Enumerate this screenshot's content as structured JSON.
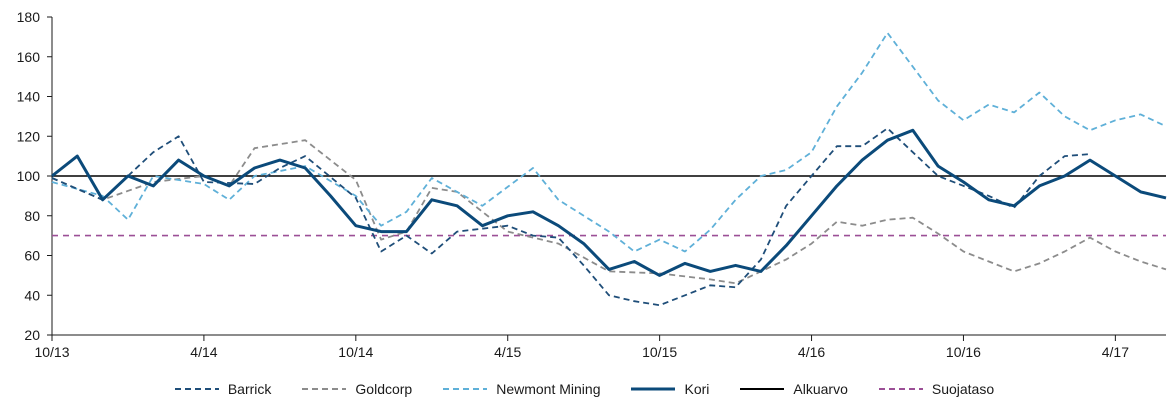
{
  "chart_data": {
    "type": "line",
    "title": "",
    "xlabel": "",
    "ylabel": "",
    "ylim": [
      20,
      180
    ],
    "yticks": [
      "20",
      "40",
      "60",
      "80",
      "100",
      "120",
      "140",
      "160",
      "180"
    ],
    "xlim": [
      "10/13",
      "6/17"
    ],
    "xticks": [
      "10/13",
      "4/14",
      "10/14",
      "4/15",
      "10/15",
      "4/16",
      "10/16",
      "4/17"
    ],
    "grid": false,
    "legend_position": "bottom",
    "series": [
      {
        "name": "Barrick",
        "color": "#1f4e79",
        "style": "dashed",
        "x": [
          "10/13",
          "12/13",
          "2/14",
          "3/14",
          "4/14",
          "6/14",
          "7/14",
          "8/14",
          "10/14",
          "11/14",
          "12/14",
          "1/15",
          "2/15",
          "4/15",
          "5/15",
          "6/15",
          "7/15",
          "8/15",
          "9/15",
          "10/15",
          "11/15",
          "12/15",
          "1/16",
          "2/16",
          "3/16",
          "4/16",
          "5/16",
          "6/16",
          "7/16",
          "8/16",
          "9/16",
          "10/16",
          "11/16",
          "12/16",
          "1/17",
          "2/17",
          "3/17"
        ],
        "values": [
          99,
          88,
          112,
          120,
          97,
          96,
          104,
          110,
          89,
          62,
          70,
          61,
          72,
          75,
          70,
          69,
          55,
          40,
          37,
          35,
          40,
          45,
          44,
          58,
          85,
          100,
          115,
          115,
          124,
          112,
          100,
          95,
          90,
          84,
          100,
          110,
          111
        ]
      },
      {
        "name": "Goldcorp",
        "color": "#8c8c8c",
        "style": "dashed",
        "x": [
          "10/13",
          "12/13",
          "2/14",
          "4/14",
          "5/14",
          "6/14",
          "8/14",
          "10/14",
          "11/14",
          "12/14",
          "1/15",
          "2/15",
          "4/15",
          "6/15",
          "8/15",
          "10/15",
          "12/15",
          "1/16",
          "3/16",
          "4/16",
          "5/16",
          "6/16",
          "7/16",
          "8/16",
          "9/16",
          "10/16",
          "11/16",
          "12/16",
          "1/17",
          "2/17",
          "3/17",
          "4/17",
          "5/17",
          "6/17"
        ],
        "values": [
          99,
          88,
          97,
          100,
          95,
          114,
          118,
          98,
          68,
          72,
          94,
          92,
          72,
          66,
          52,
          51,
          48,
          46,
          58,
          66,
          77,
          75,
          78,
          79,
          71,
          62,
          57,
          52,
          56,
          62,
          69,
          62,
          57,
          53
        ]
      },
      {
        "name": "Newmont Mining",
        "color": "#5fb0d8",
        "style": "dashed",
        "x": [
          "10/13",
          "12/13",
          "1/14",
          "2/14",
          "4/14",
          "5/14",
          "6/14",
          "8/14",
          "10/14",
          "11/14",
          "12/14",
          "1/15",
          "3/15",
          "5/15",
          "6/15",
          "8/15",
          "9/15",
          "10/15",
          "11/15",
          "12/15",
          "1/16",
          "2/16",
          "3/16",
          "4/16",
          "5/16",
          "6/16",
          "7/16",
          "8/16",
          "9/16",
          "10/16",
          "11/16",
          "12/16",
          "1/17",
          "2/17",
          "3/17",
          "4/17",
          "5/17",
          "6/17"
        ],
        "values": [
          97,
          90,
          78,
          100,
          96,
          88,
          100,
          105,
          90,
          75,
          82,
          99,
          85,
          104,
          88,
          72,
          62,
          68,
          62,
          73,
          88,
          100,
          103,
          112,
          135,
          152,
          172,
          155,
          138,
          128,
          136,
          132,
          142,
          130,
          123,
          128,
          131,
          125
        ]
      },
      {
        "name": "Kori",
        "color": "#0b4a7a",
        "style": "solid",
        "emphasis": true,
        "x": [
          "10/13",
          "11/13",
          "12/13",
          "1/14",
          "2/14",
          "3/14",
          "4/14",
          "5/14",
          "6/14",
          "7/14",
          "8/14",
          "9/14",
          "10/14",
          "11/14",
          "12/14",
          "1/15",
          "2/15",
          "3/15",
          "4/15",
          "5/15",
          "6/15",
          "7/15",
          "8/15",
          "9/15",
          "10/15",
          "11/15",
          "12/15",
          "1/16",
          "2/16",
          "3/16",
          "4/16",
          "5/16",
          "6/16",
          "7/16",
          "8/16",
          "9/16",
          "10/16",
          "11/16",
          "12/16",
          "1/17",
          "2/17",
          "3/17",
          "4/17",
          "5/17",
          "6/17"
        ],
        "values": [
          100,
          110,
          88,
          100,
          95,
          108,
          100,
          95,
          104,
          108,
          104,
          90,
          75,
          72,
          72,
          88,
          85,
          75,
          80,
          82,
          75,
          66,
          53,
          57,
          50,
          56,
          52,
          55,
          52,
          65,
          80,
          95,
          108,
          118,
          123,
          105,
          97,
          88,
          85,
          95,
          100,
          108,
          100,
          92,
          89
        ]
      },
      {
        "name": "Alkuarvo",
        "color": "#000000",
        "style": "solid",
        "x": [
          "10/13",
          "6/17"
        ],
        "values": [
          100,
          100
        ]
      },
      {
        "name": "Suojataso",
        "color": "#9b4f96",
        "style": "dashed",
        "x": [
          "10/13",
          "6/17"
        ],
        "values": [
          70,
          70
        ]
      }
    ]
  }
}
